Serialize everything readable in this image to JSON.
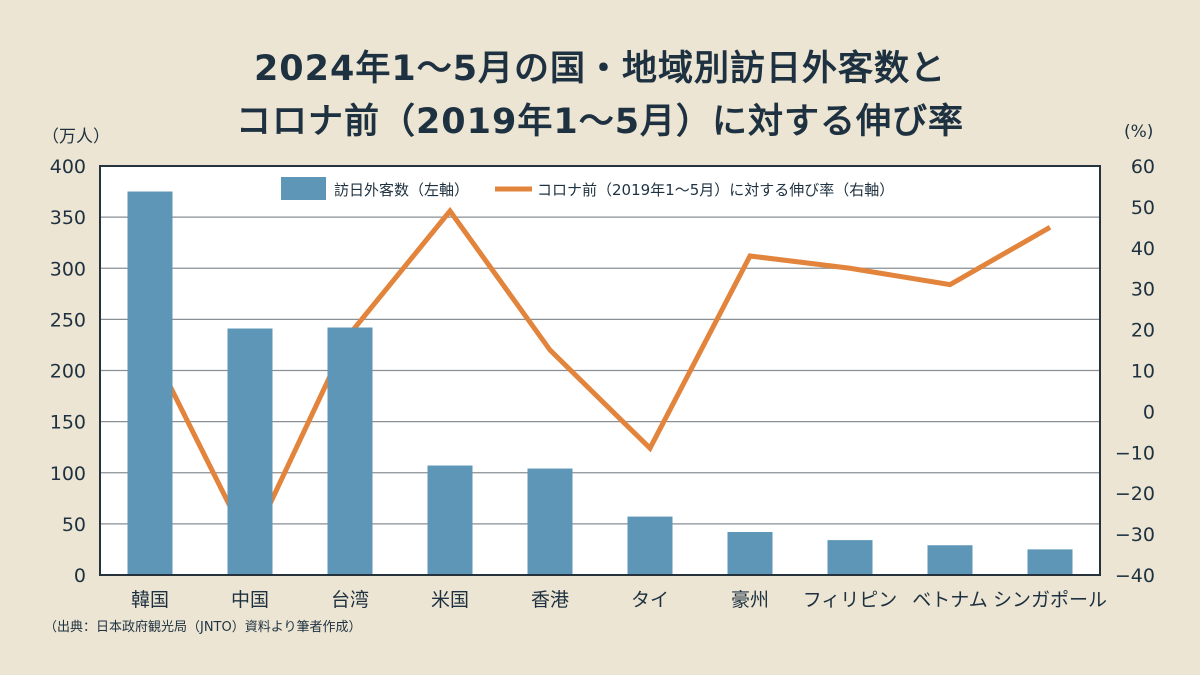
{
  "title_line1": "2024年1〜5月の国・地域別訪日外客数と",
  "title_line2": "コロナ前（2019年1〜5月）に対する伸び率",
  "left_unit": "（万人）",
  "right_unit": "(%)",
  "source": "（出典：日本政府観光局（JNTO）資料より筆者作成）",
  "colors": {
    "background": "#ece5d3",
    "bar": "#5e96b7",
    "line": "#e2843c",
    "text": "#1e3140"
  },
  "chart_data": {
    "type": "bar+line",
    "title": "2024年1〜5月の国・地域別訪日外客数と コロナ前（2019年1〜5月）に対する伸び率",
    "categories": [
      "韓国",
      "中国",
      "台湾",
      "米国",
      "香港",
      "タイ",
      "豪州",
      "フィリピン",
      "ベトナム",
      "シンガポール"
    ],
    "series": [
      {
        "name": "訪日外客数（左軸）",
        "type": "bar",
        "axis": "left",
        "values": [
          375,
          241,
          242,
          107,
          104,
          57,
          42,
          34,
          29,
          25
        ]
      },
      {
        "name": "コロナ前（2019年1〜5月）に対する伸び率（右軸）",
        "type": "line",
        "axis": "right",
        "values": [
          16,
          -33,
          19,
          49,
          15,
          -9,
          38,
          35,
          31,
          45
        ]
      }
    ],
    "left_axis": {
      "label": "（万人）",
      "ylim": [
        0,
        400
      ],
      "ticks": [
        "0",
        "50",
        "100",
        "150",
        "200",
        "250",
        "300",
        "350",
        "400"
      ]
    },
    "right_axis": {
      "label": "(%)",
      "ylim": [
        -40,
        60
      ],
      "ticks": [
        "-40",
        "-30",
        "-20",
        "-10",
        "0",
        "10",
        "20",
        "30",
        "40",
        "50",
        "60"
      ]
    },
    "grid": true,
    "legend": "top"
  }
}
